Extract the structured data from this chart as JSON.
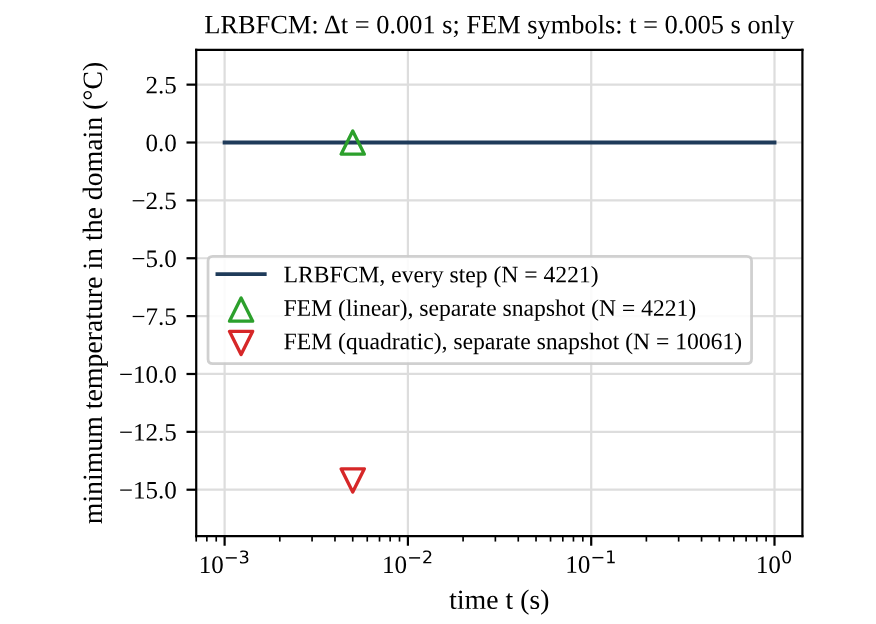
{
  "chart_data": {
    "type": "line",
    "title": "LRBFCM: Δt = 0.001 s; FEM symbols: t = 0.005 s only",
    "xlabel": "time t (s)",
    "ylabel": "minimum temperature in the domain (°C)",
    "log": "x",
    "xlim": [
      0.0007,
      1.42
    ],
    "xticks": [
      {
        "value": 0.001,
        "label": "10$^{−3}$"
      },
      {
        "value": 0.01,
        "label": "10$^{−2}$"
      },
      {
        "value": 0.1,
        "label": "10$^{−1}$"
      },
      {
        "value": 1,
        "label": "10$^{0}$"
      }
    ],
    "ylim": [
      -17,
      4
    ],
    "yticks": [
      {
        "value": -15,
        "label": "−15.0"
      },
      {
        "value": -12.5,
        "label": "−12.5"
      },
      {
        "value": -10,
        "label": "−10.0"
      },
      {
        "value": -7.5,
        "label": "−7.5"
      },
      {
        "value": -5,
        "label": "−5.0"
      },
      {
        "value": -2.5,
        "label": "−2.5"
      },
      {
        "value": 0,
        "label": "0.0"
      },
      {
        "value": 2.5,
        "label": "2.5"
      }
    ],
    "grid": true,
    "legend": "left",
    "series": [
      {
        "name": "LRBFCM, every step (N = 4221)",
        "color": "#1f3b5a",
        "x": [
          0.001,
          0.01,
          0.1,
          1
        ],
        "values": [
          0,
          0,
          0,
          0
        ],
        "marker": "none",
        "line_style": "solid"
      },
      {
        "name": "FEM (linear), separate snapshot (N = 4221)",
        "type": "scatter",
        "color": "#2ca02c",
        "x": [
          0.005
        ],
        "values": [
          0
        ],
        "marker": "triangle"
      },
      {
        "name": "FEM (quadratic), separate snapshot (N = 10061)",
        "type": "scatter",
        "color": "#d62728",
        "x": [
          0.005
        ],
        "values": [
          -14.6
        ],
        "marker": "triangle_down"
      }
    ]
  }
}
